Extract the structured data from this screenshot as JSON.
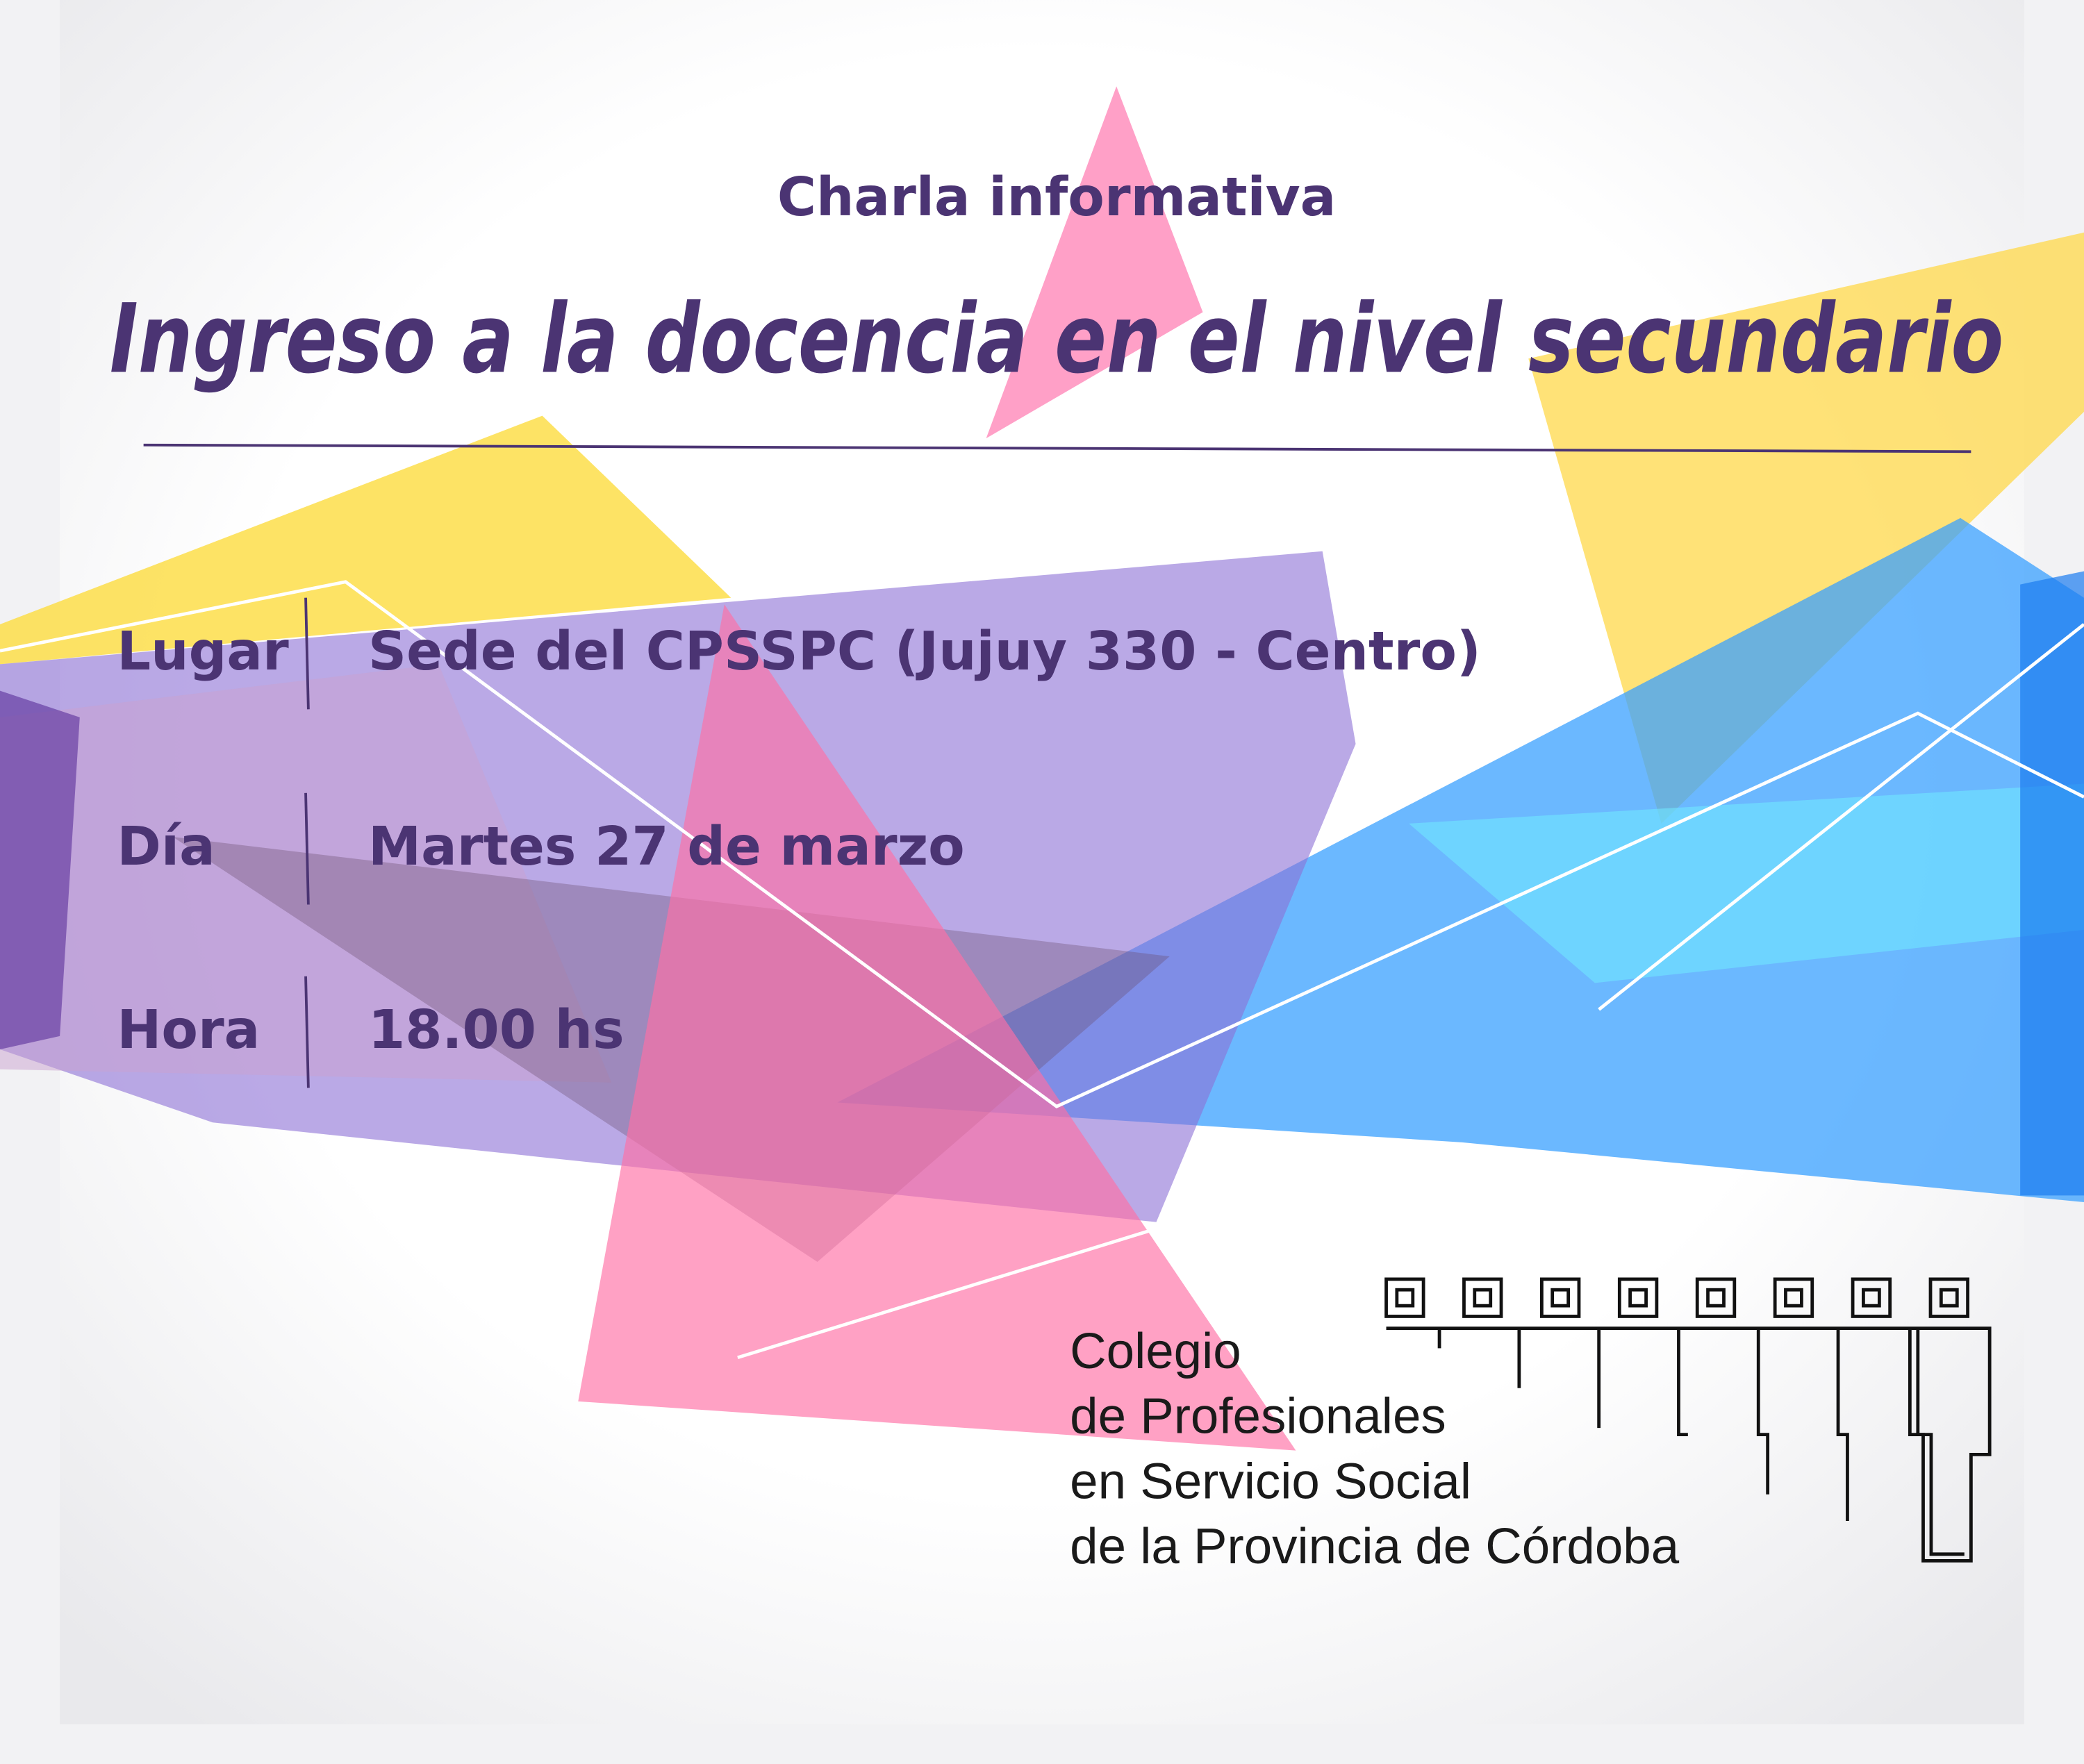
{
  "header": {
    "subtitle": "Charla informativa",
    "title": "Ingreso a la docencia en el nivel secundario"
  },
  "details": [
    {
      "label": "Lugar",
      "value": "Sede del CPSSPC (Jujuy 330 - Centro)"
    },
    {
      "label": "Día",
      "value": "Martes 27 de marzo"
    },
    {
      "label": "Hora",
      "value": "18.00 hs"
    }
  ],
  "organization": {
    "lines": [
      "Colegio",
      "de Profesionales",
      "en Servicio Social",
      "de la Provincia de Córdoba"
    ]
  }
}
